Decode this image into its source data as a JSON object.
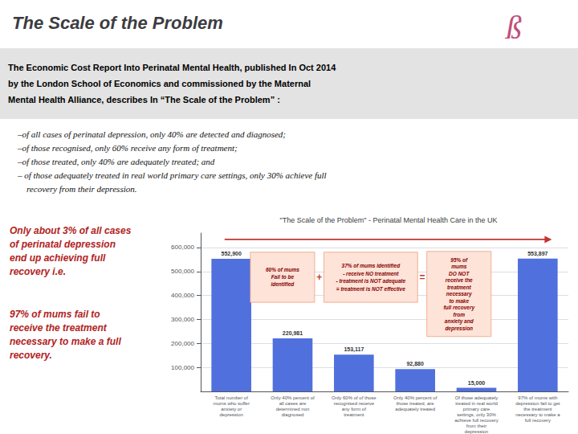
{
  "chart_data": {
    "type": "bar",
    "title": "The Scale of the Problem",
    "logo": "ß",
    "header": [
      "The Economic Cost Report Into Perinatal Mental Health, published In Oct 2014",
      "by the London School of Economics and commissioned by the Maternal",
      "Mental Health Alliance, describes In “The Scale of the Problem” :"
    ],
    "bullets": [
      "–of all cases of perinatal depression, only 40% are detected and diagnosed;",
      "–of those recognised, only 60% receive any form of treatment;",
      "–of those treated, only 40% are adequately treated; and",
      "– of those adequately treated in real world primary care settings, only 30% achieve full",
      "    recovery from their depression."
    ],
    "side_notes": [
      "Only about 3% of all cases\nof perinatal depression\nend up achieving full\nrecovery i.e.",
      "97% of mums fail to\nreceive the treatment\nnecessary to make a full\nrecovery."
    ],
    "subtitle": "\"The Scale of the Problem\" - Perinatal Mental Health Care in the UK",
    "categories": [
      "Total number of\nmums who suffer\nanxiety or\ndepression",
      "Only 40% percent of\nall cases are\ndetermined non\ndiagnosed",
      "Only 60% of of those\nrecognised receive\nany form of\ntreatment",
      "Only 40% percent of\nthose treated, are\nadequately treated",
      "Of those adequately\ntreated in real world\nprimary care\nsettings, only 30%\nachieve full recovery\nfrom their\ndepression",
      "97% of mums with\ndepression fail to get\nthe treatment\nnecessary to make a\nfull recovery"
    ],
    "values": [
      552900,
      220981,
      153117,
      92880,
      15000,
      553897
    ],
    "value_labels": [
      "552,900",
      "220,981",
      "153,117",
      "92,880",
      "15,000",
      "553,897"
    ],
    "data_labels": true,
    "ylim": [
      0,
      660000
    ],
    "yticks": [
      {
        "value": 100000,
        "label": "100,000"
      },
      {
        "value": 200000,
        "label": "200,000"
      },
      {
        "value": 300000,
        "label": "300,000"
      },
      {
        "value": 400000,
        "label": "400,000"
      },
      {
        "value": 500000,
        "label": "500,000"
      },
      {
        "value": 600000,
        "label": "600,000"
      }
    ],
    "grid": true,
    "annotations": [
      "60% of mums\nFail to be\nidentified",
      "+",
      "37% of mums identified\n- receive NO treatment\n- treatment is NOT adequate\n= treatment is NOT effective",
      "=",
      "95% of\nmums\nDO NOT\nreceive the\ntreatment\nnecessary\nto make\nfull recovery\nfrom\nanxiety and\ndepression"
    ]
  }
}
